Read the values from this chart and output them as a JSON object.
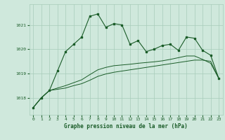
{
  "title": "Graphe pression niveau de la mer (hPa)",
  "background_color": "#cfe8dc",
  "grid_color": "#a8ccba",
  "line_color": "#1a5c28",
  "xlim": [
    -0.5,
    23.5
  ],
  "ylim": [
    1017.3,
    1021.85
  ],
  "yticks": [
    1018,
    1019,
    1020,
    1021
  ],
  "xticks": [
    0,
    1,
    2,
    3,
    4,
    5,
    6,
    7,
    8,
    9,
    10,
    11,
    12,
    13,
    14,
    15,
    16,
    17,
    18,
    19,
    20,
    21,
    22,
    23
  ],
  "series1_x": [
    0,
    1,
    2,
    3,
    4,
    5,
    6,
    7,
    8,
    9,
    10,
    11,
    12,
    13,
    14,
    15,
    16,
    17,
    18,
    19,
    20,
    21,
    22,
    23
  ],
  "series1_y": [
    1017.6,
    1018.0,
    1018.3,
    1019.1,
    1019.9,
    1020.2,
    1020.5,
    1021.35,
    1021.45,
    1020.9,
    1021.05,
    1021.0,
    1020.2,
    1020.35,
    1019.9,
    1020.0,
    1020.15,
    1020.2,
    1019.95,
    1020.5,
    1020.45,
    1019.95,
    1019.75,
    1018.8
  ],
  "series2_x": [
    0,
    1,
    2,
    3,
    4,
    5,
    6,
    7,
    8,
    9,
    10,
    11,
    12,
    13,
    14,
    15,
    16,
    17,
    18,
    19,
    20,
    21,
    22,
    23
  ],
  "series2_y": [
    1017.6,
    1018.0,
    1018.3,
    1018.35,
    1018.4,
    1018.5,
    1018.58,
    1018.72,
    1018.88,
    1018.98,
    1019.05,
    1019.1,
    1019.15,
    1019.2,
    1019.25,
    1019.3,
    1019.35,
    1019.4,
    1019.45,
    1019.5,
    1019.55,
    1019.55,
    1019.5,
    1018.8
  ],
  "series3_x": [
    0,
    1,
    2,
    3,
    4,
    5,
    6,
    7,
    8,
    9,
    10,
    11,
    12,
    13,
    14,
    15,
    16,
    17,
    18,
    19,
    20,
    21,
    22,
    23
  ],
  "series3_y": [
    1017.6,
    1018.0,
    1018.3,
    1018.4,
    1018.5,
    1018.62,
    1018.74,
    1018.95,
    1019.15,
    1019.25,
    1019.32,
    1019.35,
    1019.38,
    1019.42,
    1019.45,
    1019.48,
    1019.52,
    1019.58,
    1019.65,
    1019.72,
    1019.72,
    1019.58,
    1019.42,
    1018.8
  ]
}
